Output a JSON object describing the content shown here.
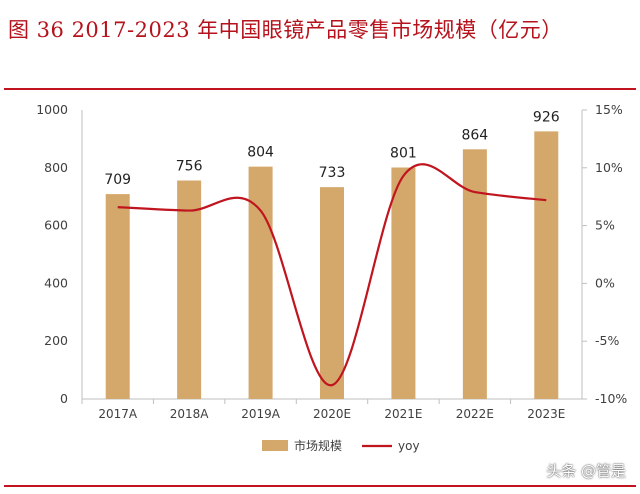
{
  "header": {
    "title": "图 36 2017-2023 年中国眼镜产品零售市场规模（亿元）"
  },
  "watermark": "头条 @管是",
  "colors": {
    "bar": "#d4a76a",
    "line": "#c0151f",
    "accent": "#c0151f",
    "axis": "#bfbfbf"
  },
  "chart_data": {
    "type": "bar",
    "title": "图 36 2017-2023 年中国眼镜产品零售市场规模（亿元）",
    "categories": [
      "2017A",
      "2018A",
      "2019A",
      "2020E",
      "2021E",
      "2022E",
      "2023E"
    ],
    "series": [
      {
        "name": "市场规模",
        "type": "bar",
        "axis": "left",
        "values": [
          709,
          756,
          804,
          733,
          801,
          864,
          926
        ]
      },
      {
        "name": "yoy",
        "type": "line",
        "axis": "right",
        "values": [
          6.6,
          6.3,
          6.3,
          -8.8,
          9.3,
          7.9,
          7.2
        ]
      }
    ],
    "left_axis": {
      "ylim": [
        0,
        1000
      ],
      "ticks": [
        "0",
        "200",
        "400",
        "600",
        "800",
        "1000"
      ]
    },
    "right_axis": {
      "ylim": [
        -10,
        15
      ],
      "ticks": [
        "-10%",
        "-5%",
        "0%",
        "5%",
        "10%",
        "15%"
      ]
    },
    "data_labels": [
      "709",
      "756",
      "804",
      "733",
      "801",
      "864",
      "926"
    ],
    "legend": {
      "position": "bottom",
      "entries": [
        "市场规模",
        "yoy"
      ]
    },
    "grid": false
  }
}
